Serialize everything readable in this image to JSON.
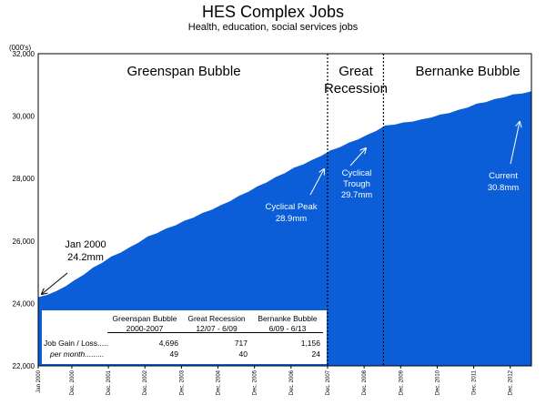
{
  "title": "HES Complex Jobs",
  "subtitle": "Health, education, social services jobs",
  "chart_data": {
    "type": "area",
    "title": "HES Complex Jobs",
    "subtitle": "Health, education, social services jobs",
    "ylabel": "(000's)",
    "xlabel": "",
    "ylim": [
      22000,
      32000
    ],
    "xlim": [
      2000.0,
      2013.5
    ],
    "yticks": [
      "22,000",
      "24,000",
      "26,000",
      "28,000",
      "30,000",
      "32,000"
    ],
    "xticks": [
      "Jan 2000",
      "Dec. 2000",
      "Dec. 2001",
      "Dec. 2002",
      "Dec. 2003",
      "Dec. 2004",
      "Dec. 2005",
      "Dec. 2006",
      "Dec. 2007",
      "Dec. 2008",
      "Dec. 2009",
      "Dec. 2010",
      "Dec. 2011",
      "Dec. 2012"
    ],
    "grid": false,
    "color": "#0b5ed7",
    "series": [
      {
        "x": [
          2000.0,
          2000.5,
          2001.0,
          2001.5,
          2002.0,
          2002.5,
          2003.0,
          2003.5,
          2004.0,
          2004.5,
          2005.0,
          2005.5,
          2006.0,
          2006.5,
          2007.0,
          2007.5,
          2008.0,
          2008.5,
          2009.0,
          2009.5,
          2010.0,
          2010.5,
          2011.0,
          2011.5,
          2012.0,
          2012.5,
          2013.0,
          2013.5
        ],
        "values": [
          24200,
          24400,
          24750,
          25150,
          25500,
          25800,
          26150,
          26400,
          26650,
          26900,
          27150,
          27450,
          27750,
          28050,
          28350,
          28600,
          28900,
          29150,
          29400,
          29700,
          29800,
          29900,
          30050,
          30200,
          30400,
          30550,
          30700,
          30800
        ]
      }
    ],
    "periods": [
      {
        "label": "Greenspan Bubble"
      },
      {
        "label_line1": "Great",
        "label_line2": "Recession"
      },
      {
        "label": "Bernanke Bubble"
      }
    ],
    "annotations": [
      {
        "line1": "Jan 2000",
        "line2": "24.2mm"
      },
      {
        "line1": "Cyclical Peak",
        "line2": "28.9mm"
      },
      {
        "line1": "Cyclical",
        "line2": "Trough",
        "line3": "29.7mm"
      },
      {
        "line1": "Current",
        "line2": "30.8mm"
      }
    ],
    "table": {
      "headers": [
        {
          "line1": "Greenspan Bubble",
          "line2": "2000-2007"
        },
        {
          "line1": "Great Recession",
          "line2": "12/07 - 6/09"
        },
        {
          "line1": "Bernanke Bubble",
          "line2": "6/09 - 6/13"
        }
      ],
      "rows": [
        {
          "label": "Job Gain / Loss.....",
          "values": [
            "4,696",
            "717",
            "1,156"
          ]
        },
        {
          "label": "per month.........",
          "values": [
            "49",
            "40",
            "24"
          ]
        }
      ]
    }
  }
}
